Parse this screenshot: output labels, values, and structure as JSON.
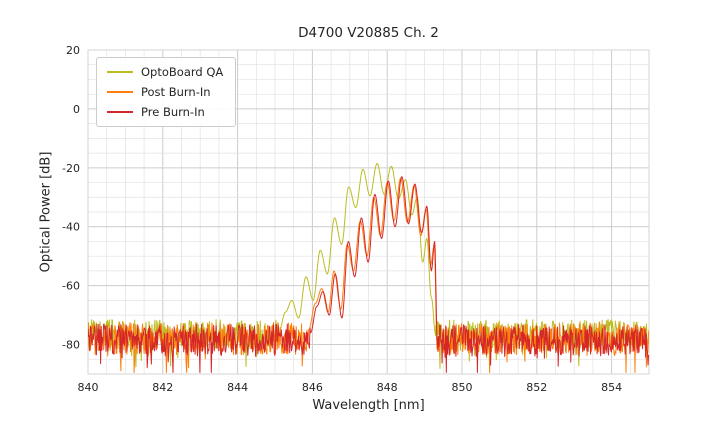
{
  "chart_data": {
    "type": "line",
    "title": "D4700 V20885 Ch. 2",
    "xlabel": "Wavelength [nm]",
    "ylabel": "Optical Power [dB]",
    "xlim": [
      840,
      855
    ],
    "ylim": [
      -90,
      20
    ],
    "xticks": [
      840,
      842,
      844,
      846,
      848,
      850,
      852,
      854
    ],
    "yticks": [
      20,
      0,
      -20,
      -40,
      -60,
      -80
    ],
    "x_minor_step": 0.5,
    "y_minor_step": 5,
    "grid": true,
    "legend_position": "upper-left",
    "series": [
      {
        "name": "OptoBoard QA",
        "color": "#bcbd22",
        "noise_floor_db": -76.5,
        "noise_amplitude_db": 5.0,
        "signal_x_range": [
          845.1,
          849.3
        ],
        "signal_points": [
          [
            845.1,
            -76
          ],
          [
            845.28,
            -69
          ],
          [
            845.45,
            -65
          ],
          [
            845.63,
            -71
          ],
          [
            845.83,
            -57
          ],
          [
            846.02,
            -65
          ],
          [
            846.21,
            -48
          ],
          [
            846.4,
            -56
          ],
          [
            846.59,
            -37
          ],
          [
            846.78,
            -46
          ],
          [
            846.97,
            -26.5
          ],
          [
            847.16,
            -33.5
          ],
          [
            847.35,
            -20.5
          ],
          [
            847.54,
            -29.5
          ],
          [
            847.73,
            -18.5
          ],
          [
            847.92,
            -29
          ],
          [
            848.11,
            -19.5
          ],
          [
            848.3,
            -30.5
          ],
          [
            848.49,
            -24
          ],
          [
            848.66,
            -36
          ],
          [
            848.8,
            -30
          ],
          [
            848.95,
            -52
          ],
          [
            849.06,
            -44
          ],
          [
            849.18,
            -64
          ],
          [
            849.3,
            -77
          ]
        ]
      },
      {
        "name": "Post Burn-In",
        "color": "#ff7f0e",
        "noise_floor_db": -78.0,
        "noise_amplitude_db": 5.5,
        "signal_x_range": [
          845.9,
          849.33
        ],
        "signal_points": [
          [
            845.9,
            -75
          ],
          [
            846.08,
            -66
          ],
          [
            846.25,
            -61
          ],
          [
            846.42,
            -69
          ],
          [
            846.58,
            -55
          ],
          [
            846.76,
            -68
          ],
          [
            846.93,
            -46
          ],
          [
            847.1,
            -55
          ],
          [
            847.28,
            -38
          ],
          [
            847.46,
            -50
          ],
          [
            847.64,
            -30
          ],
          [
            847.82,
            -43
          ],
          [
            848.0,
            -25
          ],
          [
            848.18,
            -38
          ],
          [
            848.36,
            -23.5
          ],
          [
            848.54,
            -38.5
          ],
          [
            848.72,
            -26
          ],
          [
            848.9,
            -43
          ],
          [
            849.04,
            -34
          ],
          [
            849.16,
            -53
          ],
          [
            849.26,
            -46
          ],
          [
            849.33,
            -79
          ]
        ]
      },
      {
        "name": "Pre Burn-In",
        "color": "#d62728",
        "noise_floor_db": -78.5,
        "noise_amplitude_db": 5.5,
        "signal_x_range": [
          845.95,
          849.34
        ],
        "signal_points": [
          [
            845.95,
            -76
          ],
          [
            846.12,
            -67
          ],
          [
            846.28,
            -62
          ],
          [
            846.45,
            -70
          ],
          [
            846.61,
            -56
          ],
          [
            846.79,
            -71
          ],
          [
            846.96,
            -45
          ],
          [
            847.13,
            -57
          ],
          [
            847.31,
            -37
          ],
          [
            847.49,
            -52
          ],
          [
            847.67,
            -29
          ],
          [
            847.85,
            -44
          ],
          [
            848.03,
            -24.5
          ],
          [
            848.21,
            -40
          ],
          [
            848.39,
            -23
          ],
          [
            848.57,
            -39
          ],
          [
            848.74,
            -25.5
          ],
          [
            848.92,
            -42
          ],
          [
            849.06,
            -33
          ],
          [
            849.18,
            -55
          ],
          [
            849.27,
            -45
          ],
          [
            849.34,
            -80
          ]
        ]
      }
    ]
  }
}
